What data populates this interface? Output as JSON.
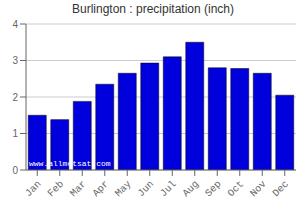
{
  "chart_data": {
    "type": "bar",
    "title": "Burlington : precipitation (inch)",
    "categories": [
      "Jan",
      "Feb",
      "Mar",
      "Apr",
      "May",
      "Jun",
      "Jul",
      "Aug",
      "Sep",
      "Oct",
      "Nov",
      "Dec"
    ],
    "values": [
      1.5,
      1.38,
      1.88,
      2.35,
      2.65,
      2.93,
      3.1,
      3.5,
      2.8,
      2.78,
      2.65,
      2.05
    ],
    "color": "#0000dd",
    "ylim": [
      0,
      4
    ],
    "yticks": [
      0,
      1,
      2,
      3,
      4
    ],
    "grid": true,
    "annotations": [
      "www.allmetsat.com"
    ]
  }
}
